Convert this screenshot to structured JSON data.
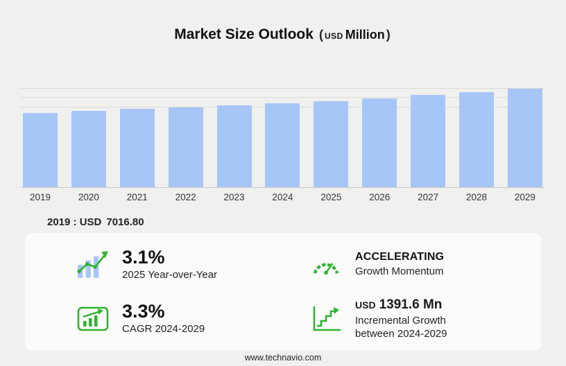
{
  "page": {
    "title": {
      "main": "Market Size Outlook",
      "paren_open": "(",
      "currency": "USD",
      "unit": "Million",
      "paren_close": ")"
    },
    "base_year_label": "2019 : USD",
    "base_year_value": "7016.80",
    "footer": "www.technavio.com"
  },
  "chart_data": {
    "type": "bar",
    "title": "Market Size Outlook (USD Million)",
    "categories": [
      "2019",
      "2020",
      "2021",
      "2022",
      "2023",
      "2024",
      "2025",
      "2026",
      "2027",
      "2028",
      "2029"
    ],
    "values": [
      7016.8,
      7190,
      7365,
      7545,
      7729,
      7894,
      8139,
      8400,
      8670,
      8970,
      9286
    ],
    "value_labels_shown": "only 2019 : USD 7016.80",
    "xlabel": "",
    "ylabel": "",
    "ylim": [
      0,
      9600
    ],
    "grid": "three faint horizontal gridlines near top, baseline at bottom",
    "legend": "none",
    "bar_color": "#a7c6f8"
  },
  "stats": {
    "yoy": {
      "value": "3.1%",
      "label": "2025 Year-over-Year"
    },
    "momentum": {
      "value": "ACCELERATING",
      "label": "Growth Momentum"
    },
    "cagr": {
      "value": "3.3%",
      "label": "CAGR 2024-2029"
    },
    "incremental": {
      "currency": "USD",
      "value": "1391.6 Mn",
      "label": "Incremental Growth between 2024-2029"
    }
  },
  "colors": {
    "accent_green": "#2eb32e",
    "bar_blue": "#a7c6f8",
    "background": "#f0f0ee"
  }
}
